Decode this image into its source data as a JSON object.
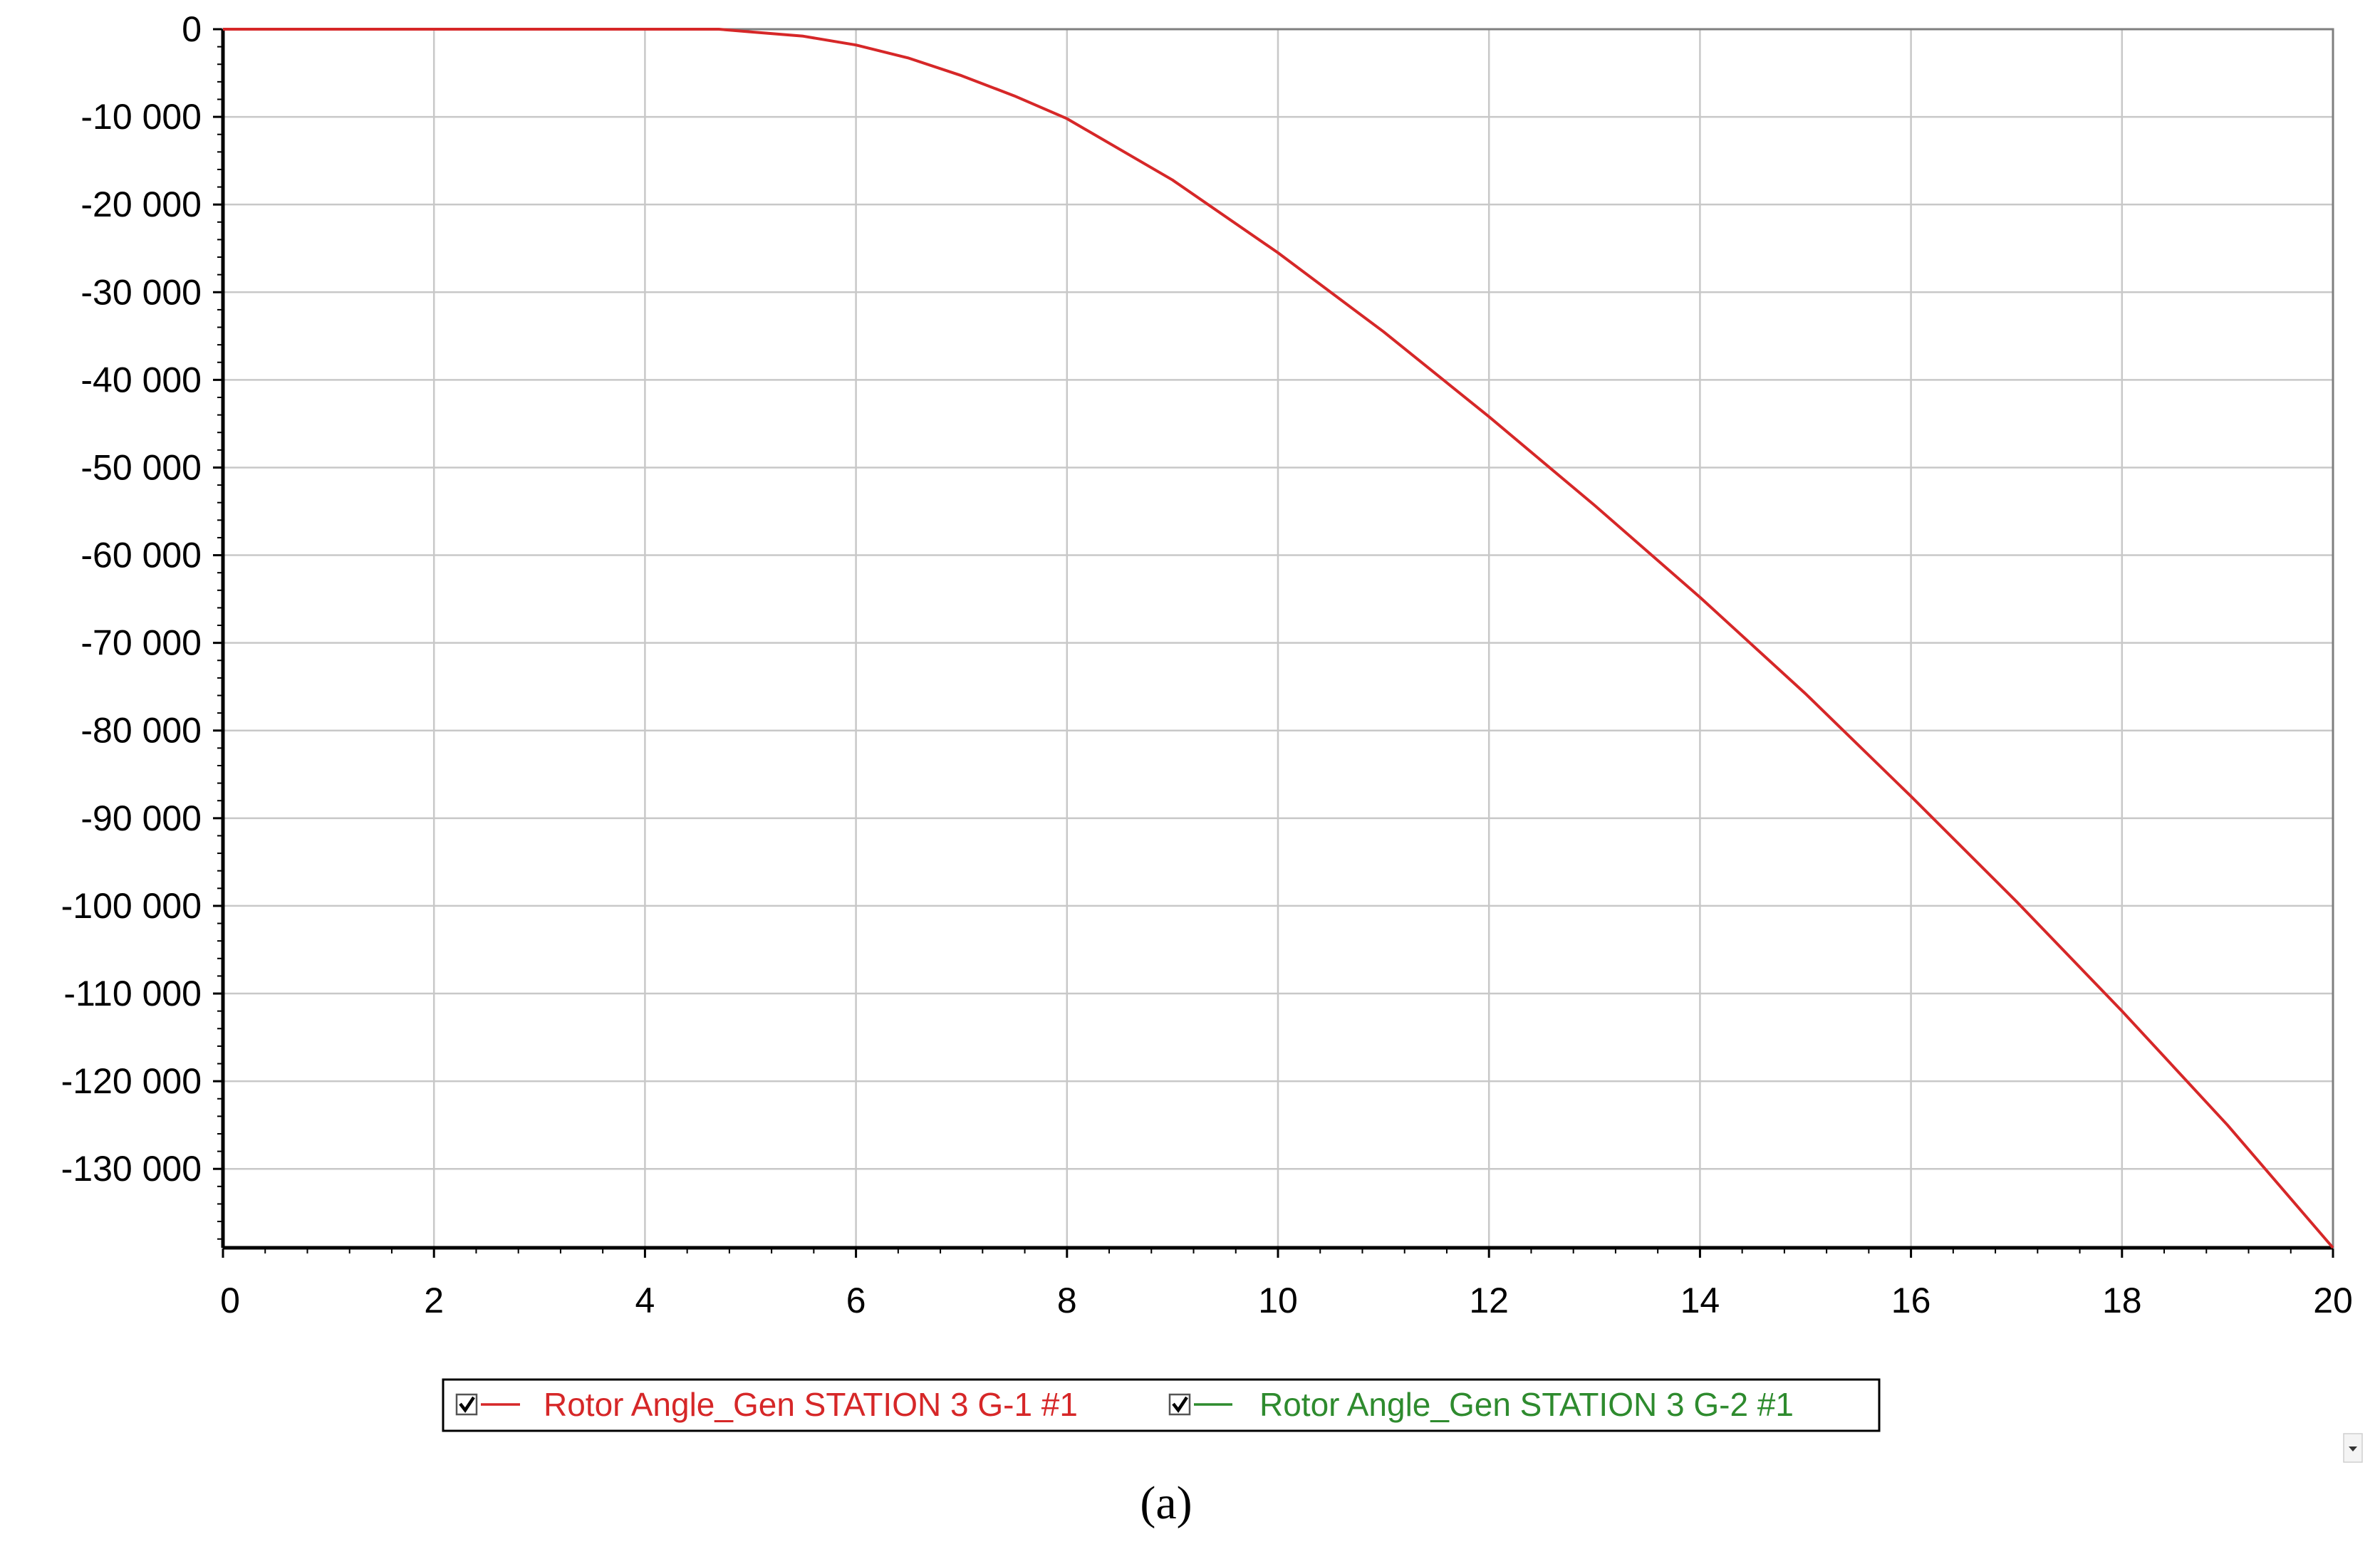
{
  "chart_data": {
    "type": "line",
    "title": "",
    "xlabel": "",
    "ylabel": "",
    "xlim": [
      0,
      20
    ],
    "ylim": [
      -139000,
      0
    ],
    "x_ticks": [
      0,
      2,
      4,
      6,
      8,
      10,
      12,
      14,
      16,
      18,
      20
    ],
    "x_tick_labels": [
      "0",
      "2",
      "4",
      "6",
      "8",
      "10",
      "12",
      "14",
      "16",
      "18",
      "20"
    ],
    "y_ticks": [
      0,
      -10000,
      -20000,
      -30000,
      -40000,
      -50000,
      -60000,
      -70000,
      -80000,
      -90000,
      -100000,
      -110000,
      -120000,
      -130000
    ],
    "y_tick_labels": [
      "0",
      "-10 000",
      "-20 000",
      "-30 000",
      "-40 000",
      "-50 000",
      "-60 000",
      "-70 000",
      "-80 000",
      "-90 000",
      "-100 000",
      "-110 000",
      "-120 000",
      "-130 000"
    ],
    "grid": true,
    "legend_position": "bottom",
    "series": [
      {
        "name": "Rotor Angle_Gen STATION 3 G-1 #1",
        "color": "#d62728",
        "checked": true,
        "x": [
          0,
          1,
          2,
          3,
          4,
          4.7,
          5,
          5.5,
          6,
          6.5,
          7,
          7.5,
          8,
          9,
          10,
          11,
          12,
          13,
          14,
          15,
          16,
          17,
          18,
          19,
          20
        ],
        "y": [
          0,
          0,
          0,
          0,
          0,
          0,
          -300,
          -800,
          -1800,
          -3300,
          -5300,
          -7600,
          -10200,
          -17200,
          -25500,
          -34500,
          -44200,
          -54300,
          -64800,
          -75800,
          -87500,
          -99500,
          -112000,
          -125000,
          -139000
        ]
      },
      {
        "name": "Rotor Angle_Gen STATION 3 G-2 #1",
        "color": "#2e8b2e",
        "checked": true,
        "x": [],
        "y": []
      }
    ]
  },
  "caption": "(a)",
  "legend_menu_icon": "dropdown-arrow-icon"
}
